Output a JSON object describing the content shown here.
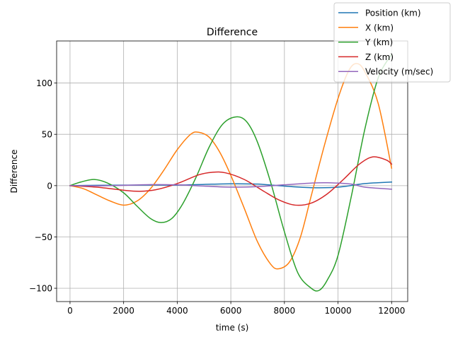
{
  "chart_data": {
    "type": "line",
    "title": "Difference",
    "xlabel": "time (s)",
    "ylabel": "Difference",
    "xlim": [
      -500,
      12600
    ],
    "ylim": [
      -113,
      141
    ],
    "xticks": [
      0,
      2000,
      4000,
      6000,
      8000,
      10000,
      12000
    ],
    "xtick_labels": [
      "0",
      "2000",
      "4000",
      "6000",
      "8000",
      "10000",
      "12000"
    ],
    "yticks": [
      -100,
      -50,
      0,
      50,
      100
    ],
    "ytick_labels": [
      "−100",
      "−50",
      "0",
      "50",
      "100"
    ],
    "grid": true,
    "legend_position": "top-right",
    "series": [
      {
        "name": "Position (km)",
        "color": "#1f77b4",
        "x": [
          0,
          1000,
          2000,
          3000,
          4000,
          5000,
          6000,
          7000,
          8000,
          9000,
          10000,
          11000,
          12000
        ],
        "y": [
          0,
          0.3,
          0.5,
          0.6,
          0.5,
          1.2,
          1.8,
          1.5,
          -0.5,
          -2.0,
          -1.5,
          2.0,
          3.5
        ]
      },
      {
        "name": "X (km)",
        "color": "#ff7f0e",
        "x": [
          0,
          500,
          1000,
          1500,
          2000,
          2500,
          3000,
          3500,
          4000,
          4500,
          4800,
          5200,
          5600,
          6000,
          6500,
          7000,
          7500,
          7800,
          8200,
          8600,
          9000,
          9500,
          10000,
          10400,
          10700,
          11000,
          11500,
          12000
        ],
        "y": [
          0,
          -3,
          -9,
          -15,
          -19,
          -15,
          -3,
          15,
          35,
          50,
          52,
          47,
          32,
          10,
          -22,
          -55,
          -77,
          -81,
          -74,
          -50,
          -10,
          40,
          85,
          112,
          119,
          111,
          80,
          17
        ]
      },
      {
        "name": "Y (km)",
        "color": "#2ca02c",
        "x": [
          0,
          400,
          900,
          1400,
          2000,
          2500,
          3000,
          3400,
          3800,
          4200,
          4700,
          5200,
          5700,
          6200,
          6600,
          7000,
          7500,
          8000,
          8500,
          9000,
          9300,
          9600,
          10000,
          10500,
          11000,
          11500,
          12000
        ],
        "y": [
          0,
          3.5,
          6,
          2.5,
          -7,
          -20,
          -32,
          -36,
          -32,
          -18,
          8,
          38,
          60,
          67,
          62,
          42,
          2,
          -45,
          -85,
          -100,
          -102,
          -92,
          -68,
          -10,
          55,
          105,
          128
        ]
      },
      {
        "name": "Z (km)",
        "color": "#d62728",
        "x": [
          0,
          1000,
          2000,
          2600,
          3200,
          4000,
          4800,
          5300,
          5800,
          6500,
          7200,
          7800,
          8400,
          9000,
          9600,
          10200,
          10800,
          11300,
          11800,
          12000
        ],
        "y": [
          0,
          -1.5,
          -4.5,
          -5.5,
          -4,
          2,
          10.5,
          13,
          12.5,
          6,
          -5,
          -14,
          -19,
          -17,
          -8,
          6,
          21,
          28,
          25,
          21
        ]
      },
      {
        "name": "Velocity (m/sec)",
        "color": "#9467bd",
        "x": [
          0,
          1000,
          2000,
          3000,
          4000,
          5000,
          6000,
          7000,
          8000,
          9000,
          9600,
          10500,
          11000,
          12000
        ],
        "y": [
          0,
          -0.2,
          0.3,
          1.0,
          0.8,
          -0.5,
          -1.5,
          -1.0,
          0.8,
          2.5,
          2.8,
          1.5,
          -1.5,
          -3.5
        ]
      }
    ]
  }
}
